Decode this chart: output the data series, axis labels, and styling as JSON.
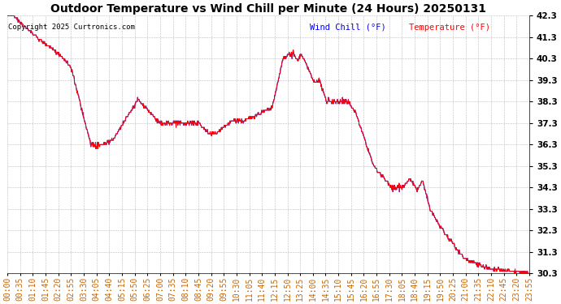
{
  "title": "Outdoor Temperature vs Wind Chill per Minute (24 Hours) 20250131",
  "copyright": "Copyright 2025 Curtronics.com",
  "legend_wind_chill": "Wind Chill (°F)",
  "legend_temperature": "Temperature (°F)",
  "wind_chill_color": "#0000ff",
  "temperature_color": "#ff0000",
  "background_color": "#ffffff",
  "grid_color": "#bbbbbb",
  "ylim_min": 30.3,
  "ylim_max": 42.3,
  "ytick_step": 1.0,
  "xtick_labels": [
    "00:00",
    "00:35",
    "01:10",
    "01:45",
    "02:20",
    "02:55",
    "03:30",
    "04:05",
    "04:40",
    "05:15",
    "05:50",
    "06:25",
    "07:00",
    "07:35",
    "08:10",
    "08:45",
    "09:20",
    "09:55",
    "10:30",
    "11:05",
    "11:40",
    "12:15",
    "12:50",
    "13:25",
    "14:00",
    "14:35",
    "15:10",
    "15:45",
    "16:20",
    "16:55",
    "17:30",
    "18:05",
    "18:40",
    "19:15",
    "19:50",
    "20:25",
    "21:00",
    "21:35",
    "22:10",
    "22:45",
    "23:20",
    "23:55"
  ],
  "n_points": 1440,
  "title_fontsize": 10,
  "copyright_fontsize": 6.5,
  "legend_fontsize": 7.5,
  "tick_fontsize": 7,
  "ytick_fontsize": 7.5
}
